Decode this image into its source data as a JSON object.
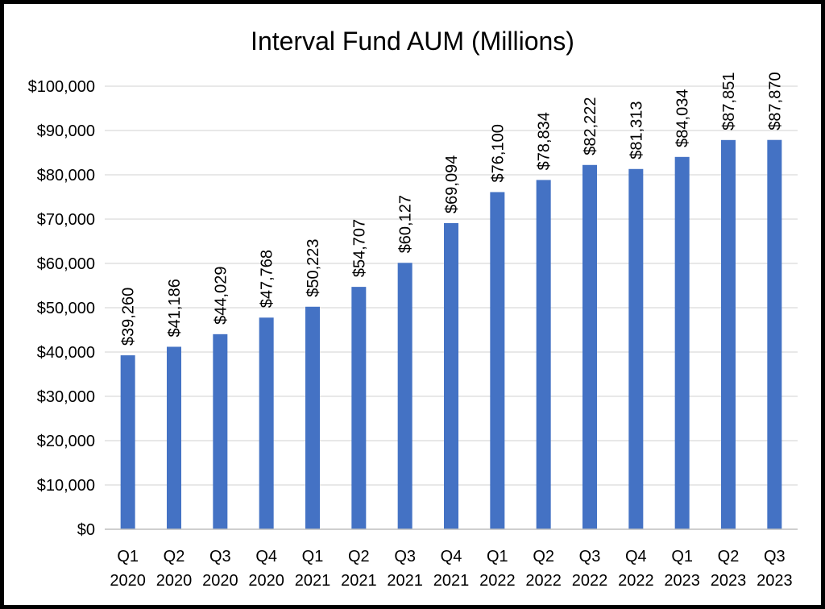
{
  "chart_data": {
    "type": "bar",
    "title": "Interval Fund AUM (Millions)",
    "xlabel": "",
    "ylabel": "",
    "categories": [
      [
        "Q1",
        "2020"
      ],
      [
        "Q2",
        "2020"
      ],
      [
        "Q3",
        "2020"
      ],
      [
        "Q4",
        "2020"
      ],
      [
        "Q1",
        "2021"
      ],
      [
        "Q2",
        "2021"
      ],
      [
        "Q3",
        "2021"
      ],
      [
        "Q4",
        "2021"
      ],
      [
        "Q1",
        "2022"
      ],
      [
        "Q2",
        "2022"
      ],
      [
        "Q3",
        "2022"
      ],
      [
        "Q4",
        "2022"
      ],
      [
        "Q1",
        "2023"
      ],
      [
        "Q2",
        "2023"
      ],
      [
        "Q3",
        "2023"
      ]
    ],
    "values": [
      39260,
      41186,
      44029,
      47768,
      50223,
      54707,
      60127,
      69094,
      76100,
      78834,
      82222,
      81313,
      84034,
      87851,
      87870
    ],
    "data_labels": [
      "$39,260",
      "$41,186",
      "$44,029",
      "$47,768",
      "$50,223",
      "$54,707",
      "$60,127",
      "$69,094",
      "$76,100",
      "$78,834",
      "$82,222",
      "$81,313",
      "$84,034",
      "$87,851",
      "$87,870"
    ],
    "ylim": [
      0,
      100000
    ],
    "yticks": [
      0,
      10000,
      20000,
      30000,
      40000,
      50000,
      60000,
      70000,
      80000,
      90000,
      100000
    ],
    "ytick_labels": [
      "$0",
      "$10,000",
      "$20,000",
      "$30,000",
      "$40,000",
      "$50,000",
      "$60,000",
      "$70,000",
      "$80,000",
      "$90,000",
      "$100,000"
    ],
    "grid": true,
    "legend": "none",
    "bar_color": "#4472c4"
  }
}
